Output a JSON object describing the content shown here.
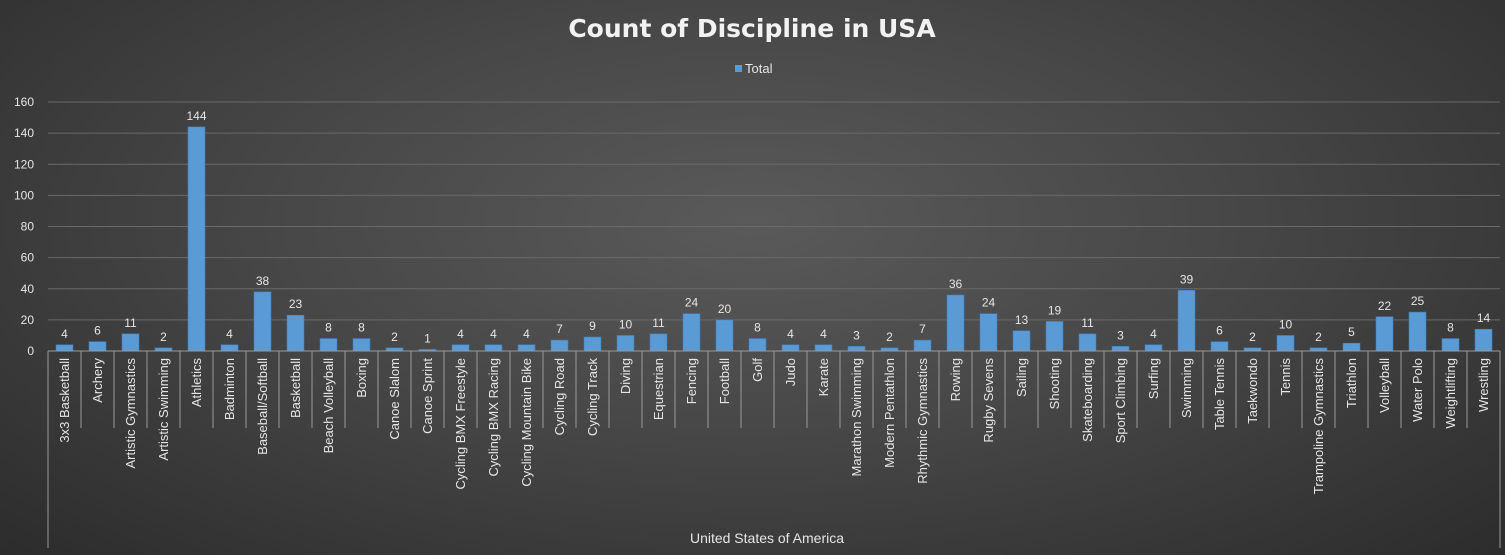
{
  "chart_data": {
    "type": "bar",
    "title": "Count of Discipline in USA",
    "legend": {
      "position": "top",
      "entries": [
        "Total"
      ]
    },
    "group_label": "United States of America",
    "ylim": [
      0,
      160
    ],
    "yticks": [
      "0",
      "20",
      "40",
      "60",
      "80",
      "100",
      "120",
      "140",
      "160"
    ],
    "grid": true,
    "colors": {
      "bar": "#5b9bd5",
      "bar_edge": "#3d7fc0"
    },
    "categories": [
      "3x3 Basketball",
      "Archery",
      "Artistic Gymnastics",
      "Artistic Swimming",
      "Athletics",
      "Badminton",
      "Baseball/Softball",
      "Basketball",
      "Beach Volleyball",
      "Boxing",
      "Canoe Slalom",
      "Canoe Sprint",
      "Cycling BMX Freestyle",
      "Cycling BMX Racing",
      "Cycling Mountain Bike",
      "Cycling Road",
      "Cycling Track",
      "Diving",
      "Equestrian",
      "Fencing",
      "Football",
      "Golf",
      "Judo",
      "Karate",
      "Marathon Swimming",
      "Modern Pentathlon",
      "Rhythmic Gymnastics",
      "Rowing",
      "Rugby Sevens",
      "Sailing",
      "Shooting",
      "Skateboarding",
      "Sport Climbing",
      "Surfing",
      "Swimming",
      "Table Tennis",
      "Taekwondo",
      "Tennis",
      "Trampoline Gymnastics",
      "Triathlon",
      "Volleyball",
      "Water Polo",
      "Weightlifting",
      "Wrestling"
    ],
    "series": [
      {
        "name": "Total",
        "values": [
          4,
          6,
          11,
          2,
          144,
          4,
          38,
          23,
          8,
          8,
          2,
          1,
          4,
          4,
          4,
          7,
          9,
          10,
          11,
          24,
          20,
          8,
          4,
          4,
          3,
          2,
          7,
          36,
          24,
          13,
          19,
          11,
          3,
          4,
          39,
          6,
          2,
          10,
          2,
          5,
          22,
          25,
          8,
          14
        ]
      }
    ]
  }
}
